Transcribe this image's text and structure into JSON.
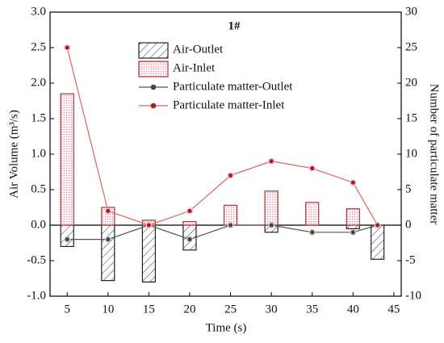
{
  "chart_data": {
    "type": "bar-line",
    "title": "1#",
    "x_label": "Time (s)",
    "y_label": "Air Volume (m³/s)",
    "y2_label": "Number of particulate matter",
    "x": [
      5,
      10,
      15,
      20,
      25,
      30,
      35,
      40,
      43
    ],
    "xlim": [
      2.9,
      45.9
    ],
    "xticks": [
      5,
      10,
      15,
      20,
      25,
      30,
      35,
      40,
      45
    ],
    "ylim": [
      -1,
      3
    ],
    "yticks": [
      {
        "value": -1,
        "label": "-1.0"
      },
      -0.5,
      {
        "value": 0,
        "label": "0.0"
      },
      0.5,
      {
        "value": 1,
        "label": "1.0"
      },
      1.5,
      {
        "value": 2,
        "label": "2.0"
      },
      2.5,
      {
        "value": 3,
        "label": "3.0"
      }
    ],
    "y2lim": [
      -10,
      30
    ],
    "y2ticks": [
      -10,
      -5,
      0,
      5,
      10,
      15,
      20,
      25,
      30
    ],
    "series": [
      {
        "name": "Air-Outlet",
        "type": "bar",
        "style": "hatch",
        "color": "#222222",
        "values": [
          -0.3,
          -0.78,
          -0.8,
          -0.35,
          0,
          -0.1,
          0,
          -0.05,
          -0.48
        ]
      },
      {
        "name": "Air-Inlet",
        "type": "bar",
        "style": "dots",
        "color": "#b03030",
        "values": [
          1.85,
          0.25,
          0.07,
          0.05,
          0.28,
          0.48,
          0.32,
          0.23,
          0
        ]
      },
      {
        "name": "Particulate matter-Outlet",
        "type": "line",
        "axis": "y2",
        "color": "#555555",
        "values": [
          -2,
          -2,
          0,
          -2,
          0,
          0,
          -1,
          -1,
          0
        ]
      },
      {
        "name": "Particulate matter-Inlet",
        "type": "line",
        "axis": "y2",
        "color": "#e06060",
        "values": [
          25,
          2,
          0,
          2,
          7,
          9,
          8,
          6,
          0
        ]
      }
    ]
  }
}
